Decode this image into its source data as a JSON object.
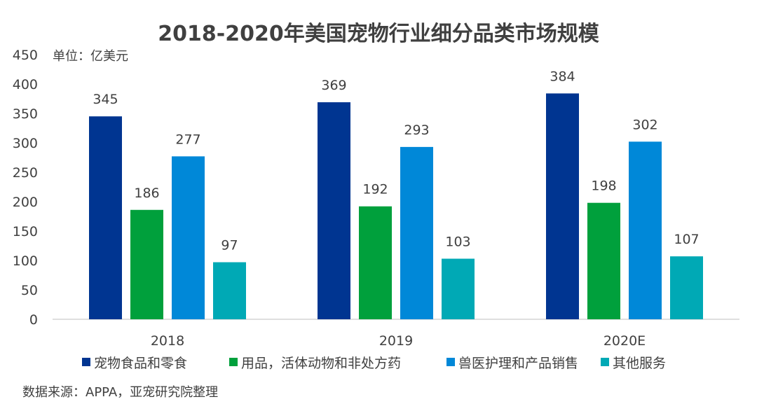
{
  "chart_data": {
    "type": "bar",
    "title": "2018-2020年美国宠物行业细分品类市场规模",
    "unit_label": "单位：亿美元",
    "categories": [
      "2018",
      "2019",
      "2020E"
    ],
    "series": [
      {
        "name": "宠物食品和零食",
        "color": "#003591",
        "values": [
          345,
          369,
          384
        ]
      },
      {
        "name": "用品，活体动物和非处方药",
        "color": "#00A03C",
        "values": [
          186,
          192,
          198
        ]
      },
      {
        "name": "兽医护理和产品销售",
        "color": "#0088D8",
        "values": [
          277,
          293,
          302
        ]
      },
      {
        "name": "其他服务",
        "color": "#00A9B5",
        "values": [
          97,
          103,
          107
        ]
      }
    ],
    "ylim": [
      0,
      450
    ],
    "yticks": [
      0,
      50,
      100,
      150,
      200,
      250,
      300,
      350,
      400,
      450
    ],
    "grid": false,
    "legend_position": "bottom",
    "data_labels": true
  },
  "source": "数据来源：APPA，亚宠研究院整理"
}
